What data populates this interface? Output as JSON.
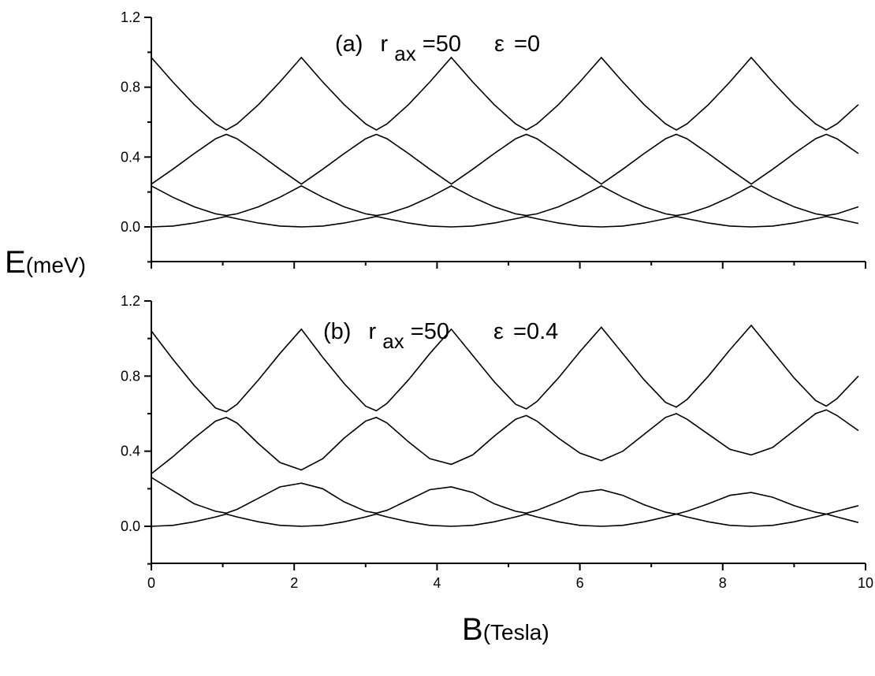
{
  "chart_data": [
    {
      "type": "line",
      "panel": "(a)",
      "annotation": {
        "label": "(a)",
        "r": "r",
        "sub": "ax",
        "r_value": "=50",
        "eps": "ε",
        "eps_value": "=0"
      },
      "xlim": [
        0,
        10
      ],
      "ylim": [
        -0.2,
        1.2
      ],
      "yticks": [
        "0.0",
        "0.4",
        "0.8",
        "1.2"
      ],
      "period": 2.1,
      "levels": [
        {
          "x": [
            0,
            0.3,
            0.6,
            0.9,
            1.05,
            1.2,
            1.5,
            1.8,
            2.1,
            2.4,
            2.7,
            3.0,
            3.15,
            3.3,
            3.6,
            3.9,
            4.2,
            4.5,
            4.8,
            5.1,
            5.25,
            5.4,
            5.7,
            6.0,
            6.3,
            6.6,
            6.9,
            7.2,
            7.35,
            7.5,
            7.8,
            8.1,
            8.4,
            8.7,
            9.0,
            9.3,
            9.45,
            9.6,
            9.9
          ],
          "y": [
            0.0,
            0.005,
            0.022,
            0.047,
            0.06,
            0.047,
            0.022,
            0.005,
            0.0,
            0.005,
            0.022,
            0.047,
            0.06,
            0.047,
            0.022,
            0.005,
            0.0,
            0.005,
            0.022,
            0.047,
            0.06,
            0.047,
            0.022,
            0.005,
            0.0,
            0.005,
            0.022,
            0.047,
            0.06,
            0.047,
            0.022,
            0.005,
            0.0,
            0.005,
            0.022,
            0.047,
            0.06,
            0.047,
            0.02
          ]
        },
        {
          "x": [
            0,
            0.3,
            0.6,
            0.9,
            1.05,
            1.2,
            1.5,
            1.8,
            2.1,
            2.4,
            2.7,
            3.0,
            3.15,
            3.3,
            3.6,
            3.9,
            4.2,
            4.5,
            4.8,
            5.1,
            5.25,
            5.4,
            5.7,
            6.0,
            6.3,
            6.6,
            6.9,
            7.2,
            7.35,
            7.5,
            7.8,
            8.1,
            8.4,
            8.7,
            9.0,
            9.3,
            9.45,
            9.6,
            9.9
          ],
          "y": [
            0.235,
            0.17,
            0.115,
            0.075,
            0.065,
            0.075,
            0.115,
            0.17,
            0.235,
            0.17,
            0.115,
            0.075,
            0.065,
            0.075,
            0.115,
            0.17,
            0.235,
            0.17,
            0.115,
            0.075,
            0.065,
            0.075,
            0.115,
            0.17,
            0.235,
            0.17,
            0.115,
            0.075,
            0.065,
            0.075,
            0.115,
            0.17,
            0.235,
            0.17,
            0.115,
            0.075,
            0.065,
            0.075,
            0.115
          ]
        },
        {
          "x": [
            0,
            0.3,
            0.6,
            0.9,
            1.05,
            1.2,
            1.5,
            1.8,
            2.1,
            2.4,
            2.7,
            3.0,
            3.15,
            3.3,
            3.6,
            3.9,
            4.2,
            4.5,
            4.8,
            5.1,
            5.25,
            5.4,
            5.7,
            6.0,
            6.3,
            6.6,
            6.9,
            7.2,
            7.35,
            7.5,
            7.8,
            8.1,
            8.4,
            8.7,
            9.0,
            9.3,
            9.45,
            9.6,
            9.9
          ],
          "y": [
            0.245,
            0.33,
            0.42,
            0.505,
            0.53,
            0.505,
            0.42,
            0.33,
            0.245,
            0.33,
            0.42,
            0.505,
            0.53,
            0.505,
            0.42,
            0.33,
            0.245,
            0.33,
            0.42,
            0.505,
            0.53,
            0.505,
            0.42,
            0.33,
            0.245,
            0.33,
            0.42,
            0.505,
            0.53,
            0.505,
            0.42,
            0.33,
            0.245,
            0.33,
            0.42,
            0.505,
            0.53,
            0.505,
            0.42
          ]
        },
        {
          "x": [
            0,
            0.3,
            0.6,
            0.9,
            1.05,
            1.2,
            1.5,
            1.8,
            2.1,
            2.4,
            2.7,
            3.0,
            3.15,
            3.3,
            3.6,
            3.9,
            4.2,
            4.5,
            4.8,
            5.1,
            5.25,
            5.4,
            5.7,
            6.0,
            6.3,
            6.6,
            6.9,
            7.2,
            7.35,
            7.5,
            7.8,
            8.1,
            8.4,
            8.7,
            9.0,
            9.3,
            9.45,
            9.6,
            9.9
          ],
          "y": [
            0.97,
            0.83,
            0.7,
            0.59,
            0.555,
            0.59,
            0.7,
            0.83,
            0.97,
            0.83,
            0.7,
            0.59,
            0.555,
            0.59,
            0.7,
            0.83,
            0.97,
            0.83,
            0.7,
            0.59,
            0.555,
            0.59,
            0.7,
            0.83,
            0.97,
            0.83,
            0.7,
            0.59,
            0.555,
            0.59,
            0.7,
            0.83,
            0.97,
            0.83,
            0.7,
            0.59,
            0.555,
            0.59,
            0.7
          ]
        }
      ]
    },
    {
      "type": "line",
      "panel": "(b)",
      "annotation": {
        "label": "(b)",
        "r": "r",
        "sub": "ax",
        "r_value": "=50",
        "eps": "ε",
        "eps_value": "=0.4"
      },
      "xlim": [
        0,
        10
      ],
      "ylim": [
        -0.2,
        1.2
      ],
      "xticks": [
        "0",
        "2",
        "4",
        "6",
        "8",
        "10"
      ],
      "yticks": [
        "0.0",
        "0.4",
        "0.8",
        "1.2"
      ],
      "levels": [
        {
          "x": [
            0,
            0.3,
            0.6,
            0.9,
            1.05,
            1.2,
            1.5,
            1.8,
            2.1,
            2.4,
            2.7,
            3.0,
            3.15,
            3.3,
            3.6,
            3.9,
            4.2,
            4.5,
            4.8,
            5.1,
            5.25,
            5.4,
            5.7,
            6.0,
            6.3,
            6.6,
            6.9,
            7.2,
            7.35,
            7.5,
            7.8,
            8.1,
            8.4,
            8.7,
            9.0,
            9.3,
            9.45,
            9.6,
            9.9
          ],
          "y": [
            0.0,
            0.005,
            0.024,
            0.05,
            0.065,
            0.05,
            0.024,
            0.005,
            0.0,
            0.005,
            0.024,
            0.05,
            0.065,
            0.05,
            0.024,
            0.005,
            0.0,
            0.005,
            0.024,
            0.05,
            0.065,
            0.05,
            0.024,
            0.005,
            0.0,
            0.005,
            0.024,
            0.05,
            0.065,
            0.05,
            0.024,
            0.005,
            0.0,
            0.005,
            0.024,
            0.05,
            0.065,
            0.05,
            0.02
          ]
        },
        {
          "x": [
            0,
            0.3,
            0.6,
            0.9,
            1.05,
            1.2,
            1.5,
            1.8,
            2.1,
            2.4,
            2.7,
            3.0,
            3.15,
            3.3,
            3.6,
            3.9,
            4.2,
            4.5,
            4.8,
            5.1,
            5.25,
            5.4,
            5.7,
            6.0,
            6.3,
            6.6,
            6.9,
            7.2,
            7.35,
            7.5,
            7.8,
            8.1,
            8.4,
            8.7,
            9.0,
            9.3,
            9.45,
            9.6,
            9.9
          ],
          "y": [
            0.26,
            0.19,
            0.12,
            0.08,
            0.07,
            0.09,
            0.15,
            0.21,
            0.23,
            0.2,
            0.13,
            0.08,
            0.07,
            0.085,
            0.14,
            0.195,
            0.21,
            0.18,
            0.12,
            0.08,
            0.07,
            0.085,
            0.13,
            0.18,
            0.195,
            0.165,
            0.115,
            0.075,
            0.065,
            0.08,
            0.12,
            0.165,
            0.18,
            0.155,
            0.11,
            0.075,
            0.065,
            0.08,
            0.11
          ]
        },
        {
          "x": [
            0,
            0.3,
            0.6,
            0.9,
            1.05,
            1.2,
            1.5,
            1.8,
            2.1,
            2.4,
            2.7,
            3.0,
            3.15,
            3.3,
            3.6,
            3.9,
            4.2,
            4.5,
            4.8,
            5.1,
            5.25,
            5.4,
            5.7,
            6.0,
            6.3,
            6.6,
            6.9,
            7.2,
            7.35,
            7.5,
            7.8,
            8.1,
            8.4,
            8.7,
            9.0,
            9.3,
            9.45,
            9.6,
            9.9
          ],
          "y": [
            0.28,
            0.37,
            0.47,
            0.56,
            0.58,
            0.55,
            0.44,
            0.34,
            0.3,
            0.36,
            0.47,
            0.56,
            0.58,
            0.55,
            0.45,
            0.36,
            0.33,
            0.38,
            0.48,
            0.57,
            0.59,
            0.56,
            0.47,
            0.39,
            0.35,
            0.4,
            0.49,
            0.58,
            0.6,
            0.57,
            0.49,
            0.41,
            0.38,
            0.42,
            0.51,
            0.6,
            0.62,
            0.59,
            0.51
          ]
        },
        {
          "x": [
            0,
            0.3,
            0.6,
            0.9,
            1.05,
            1.2,
            1.5,
            1.8,
            2.1,
            2.4,
            2.7,
            3.0,
            3.15,
            3.3,
            3.6,
            3.9,
            4.2,
            4.5,
            4.8,
            5.1,
            5.25,
            5.4,
            5.7,
            6.0,
            6.3,
            6.6,
            6.9,
            7.2,
            7.35,
            7.5,
            7.8,
            8.1,
            8.4,
            8.7,
            9.0,
            9.3,
            9.45,
            9.6,
            9.9
          ],
          "y": [
            1.04,
            0.89,
            0.75,
            0.63,
            0.61,
            0.65,
            0.78,
            0.92,
            1.05,
            0.9,
            0.76,
            0.64,
            0.615,
            0.655,
            0.78,
            0.92,
            1.05,
            0.91,
            0.77,
            0.65,
            0.625,
            0.665,
            0.79,
            0.93,
            1.06,
            0.92,
            0.78,
            0.66,
            0.635,
            0.675,
            0.8,
            0.94,
            1.07,
            0.93,
            0.79,
            0.67,
            0.64,
            0.68,
            0.8
          ]
        }
      ]
    }
  ],
  "ylabel": {
    "main": "E",
    "unit": "(meV)"
  },
  "xlabel": {
    "main": "B",
    "unit": "(Tesla)"
  }
}
